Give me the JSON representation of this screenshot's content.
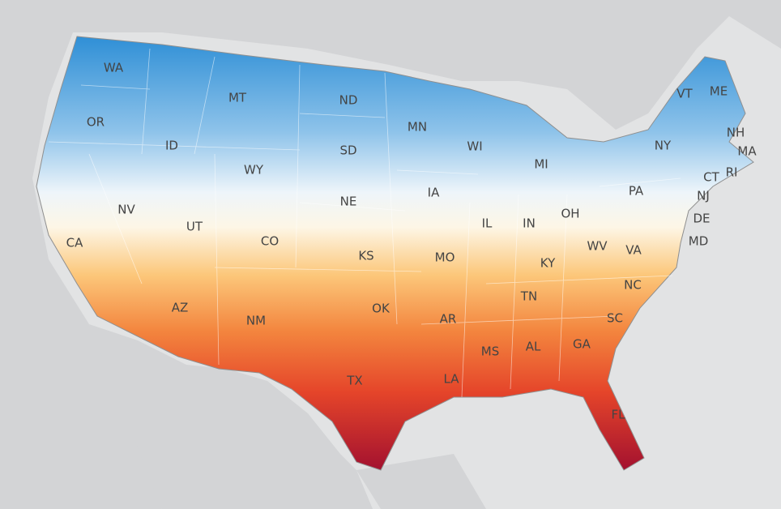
{
  "labels": [
    "WA",
    "OR",
    "ID",
    "MT",
    "WY",
    "NV",
    "UT",
    "CO",
    "CA",
    "AZ",
    "NM",
    "ND",
    "SD",
    "NE",
    "KS",
    "OK",
    "TX",
    "MN",
    "IA",
    "MO",
    "AR",
    "LA",
    "WI",
    "IL",
    "MS",
    "MI",
    "IN",
    "OH",
    "KY",
    "TN",
    "AL",
    "GA",
    "FL",
    "SC",
    "NC",
    "VA",
    "WV",
    "PA",
    "NY",
    "VT",
    "ME",
    "NH",
    "MA",
    "RI",
    "CT",
    "NJ",
    "DE",
    "MD"
  ]
}
